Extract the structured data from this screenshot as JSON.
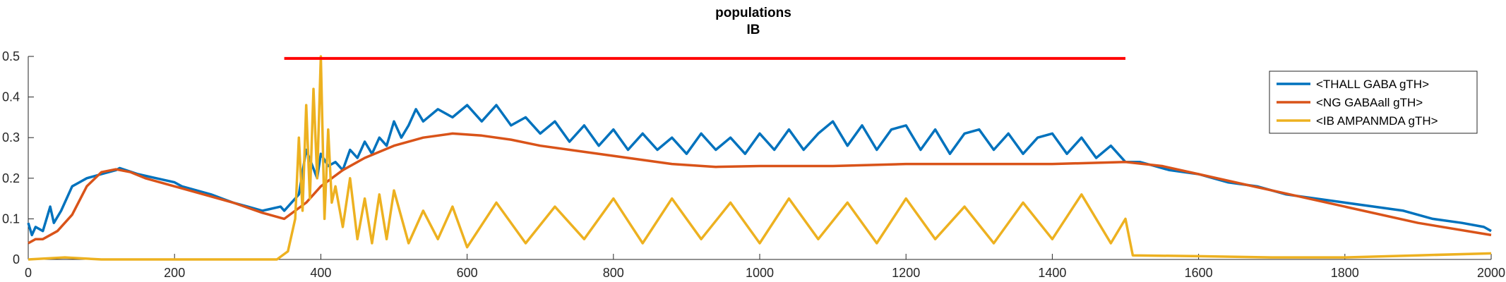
{
  "chart_data": {
    "type": "line",
    "title": "populations",
    "subtitle": "IB",
    "xlabel": "",
    "ylabel": "",
    "xlim": [
      0,
      2000
    ],
    "ylim": [
      0,
      0.5
    ],
    "xticks": [
      0,
      200,
      400,
      600,
      800,
      1000,
      1200,
      1400,
      1600,
      1800,
      2000
    ],
    "yticks": [
      0,
      0.1,
      0.2,
      0.3,
      0.4,
      0.5
    ],
    "ytick_labels": [
      "0",
      "0.1",
      "0.2",
      "0.3",
      "0.4",
      "0.5"
    ],
    "grid": false,
    "legend_position": "top-right",
    "stimulus_bar": {
      "x": [
        350,
        1500
      ],
      "y": 0.495,
      "color": "#ff0000"
    },
    "series": [
      {
        "name": "<THALL GABA gTH>",
        "color": "#0072BD",
        "x": [
          0,
          5,
          10,
          20,
          30,
          35,
          45,
          60,
          70,
          80,
          100,
          120,
          125,
          150,
          175,
          200,
          210,
          220,
          250,
          265,
          280,
          300,
          320,
          345,
          350,
          370,
          380,
          395,
          400,
          410,
          420,
          430,
          440,
          450,
          460,
          470,
          480,
          490,
          500,
          510,
          520,
          530,
          540,
          560,
          580,
          600,
          620,
          640,
          660,
          680,
          700,
          720,
          740,
          760,
          780,
          800,
          820,
          840,
          860,
          880,
          900,
          920,
          940,
          960,
          980,
          1000,
          1020,
          1040,
          1060,
          1080,
          1100,
          1120,
          1140,
          1160,
          1180,
          1200,
          1220,
          1240,
          1260,
          1280,
          1300,
          1320,
          1340,
          1360,
          1380,
          1400,
          1420,
          1440,
          1460,
          1480,
          1500,
          1520,
          1540,
          1560,
          1600,
          1640,
          1680,
          1720,
          1760,
          1800,
          1840,
          1880,
          1920,
          1960,
          1990,
          2000
        ],
        "y": [
          0.09,
          0.06,
          0.08,
          0.07,
          0.13,
          0.09,
          0.12,
          0.18,
          0.19,
          0.2,
          0.21,
          0.22,
          0.225,
          0.21,
          0.2,
          0.19,
          0.18,
          0.175,
          0.16,
          0.15,
          0.14,
          0.13,
          0.12,
          0.13,
          0.12,
          0.16,
          0.27,
          0.2,
          0.26,
          0.23,
          0.24,
          0.22,
          0.27,
          0.25,
          0.29,
          0.26,
          0.3,
          0.28,
          0.34,
          0.3,
          0.33,
          0.37,
          0.34,
          0.37,
          0.35,
          0.38,
          0.34,
          0.38,
          0.33,
          0.35,
          0.31,
          0.34,
          0.29,
          0.33,
          0.28,
          0.32,
          0.27,
          0.31,
          0.27,
          0.3,
          0.26,
          0.31,
          0.27,
          0.3,
          0.26,
          0.31,
          0.27,
          0.32,
          0.27,
          0.31,
          0.34,
          0.28,
          0.33,
          0.27,
          0.32,
          0.33,
          0.27,
          0.32,
          0.26,
          0.31,
          0.32,
          0.27,
          0.31,
          0.26,
          0.3,
          0.31,
          0.26,
          0.3,
          0.25,
          0.28,
          0.24,
          0.24,
          0.23,
          0.22,
          0.21,
          0.19,
          0.18,
          0.16,
          0.15,
          0.14,
          0.13,
          0.12,
          0.1,
          0.09,
          0.08,
          0.07
        ]
      },
      {
        "name": "<NG GABAall gTH>",
        "color": "#D95319",
        "x": [
          0,
          10,
          20,
          40,
          60,
          80,
          100,
          120,
          140,
          160,
          180,
          200,
          240,
          280,
          320,
          350,
          380,
          400,
          430,
          460,
          500,
          540,
          580,
          620,
          660,
          700,
          760,
          820,
          880,
          940,
          1000,
          1100,
          1200,
          1300,
          1400,
          1500,
          1550,
          1600,
          1700,
          1800,
          1900,
          2000
        ],
        "y": [
          0.04,
          0.05,
          0.05,
          0.07,
          0.11,
          0.18,
          0.215,
          0.222,
          0.215,
          0.2,
          0.19,
          0.18,
          0.16,
          0.14,
          0.115,
          0.1,
          0.14,
          0.18,
          0.22,
          0.25,
          0.28,
          0.3,
          0.31,
          0.305,
          0.295,
          0.28,
          0.265,
          0.25,
          0.235,
          0.228,
          0.23,
          0.23,
          0.235,
          0.235,
          0.235,
          0.24,
          0.23,
          0.21,
          0.17,
          0.13,
          0.09,
          0.06
        ]
      },
      {
        "name": "<IB AMPANMDA gTH>",
        "color": "#EDB120",
        "x": [
          0,
          50,
          100,
          200,
          300,
          340,
          355,
          365,
          370,
          375,
          380,
          385,
          390,
          395,
          400,
          405,
          410,
          415,
          420,
          430,
          440,
          450,
          460,
          470,
          480,
          490,
          500,
          520,
          540,
          560,
          580,
          600,
          640,
          680,
          720,
          760,
          800,
          840,
          880,
          920,
          960,
          1000,
          1040,
          1080,
          1120,
          1160,
          1200,
          1240,
          1280,
          1320,
          1360,
          1400,
          1440,
          1480,
          1500,
          1510,
          1600,
          1700,
          1800,
          1900,
          2000
        ],
        "y": [
          0.0,
          0.005,
          0.0,
          0.0,
          0.0,
          0.0,
          0.02,
          0.1,
          0.3,
          0.12,
          0.38,
          0.15,
          0.42,
          0.2,
          0.5,
          0.1,
          0.32,
          0.14,
          0.18,
          0.08,
          0.2,
          0.05,
          0.15,
          0.04,
          0.16,
          0.05,
          0.17,
          0.04,
          0.12,
          0.05,
          0.13,
          0.03,
          0.14,
          0.04,
          0.13,
          0.05,
          0.15,
          0.04,
          0.15,
          0.05,
          0.14,
          0.04,
          0.15,
          0.05,
          0.14,
          0.04,
          0.15,
          0.05,
          0.13,
          0.04,
          0.14,
          0.05,
          0.16,
          0.04,
          0.1,
          0.01,
          0.008,
          0.005,
          0.005,
          0.01,
          0.015
        ]
      }
    ]
  }
}
